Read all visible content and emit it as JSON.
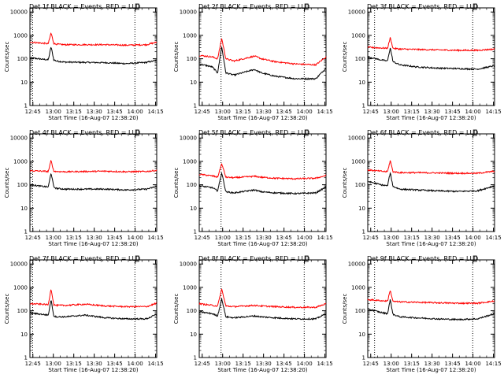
{
  "figure": {
    "ylabel": "Counts/sec",
    "xlabel": "Start Time (16-Aug-07 12:38:20)",
    "title_suffix": "BLACK = Events, RED = LLD",
    "yticks": [
      "1",
      "10",
      "100",
      "1000",
      "10000"
    ],
    "xticks": [
      "12:45",
      "13:00",
      "13:15",
      "13:30",
      "13:45",
      "14:00",
      "14:15"
    ],
    "colors": {
      "events": "#000000",
      "lld": "#ff0000"
    }
  },
  "chart_data": [
    {
      "type": "line",
      "title": "Det 1f BLACK = Events, RED = LLD",
      "det": "Det 1f",
      "ylim": [
        1,
        15000
      ],
      "xlim_min": [
        4.5,
        97.5
      ],
      "yscale": "log",
      "dotted_lines_min": [
        6.5,
        81.5
      ],
      "series": [
        {
          "name": "Events",
          "color": "#000000",
          "x": [
            4.5,
            14,
            18,
            20,
            22,
            24,
            30,
            45,
            60,
            75,
            90,
            97.5
          ],
          "y": [
            110,
            95,
            90,
            330,
            90,
            80,
            72,
            70,
            68,
            62,
            70,
            85
          ]
        },
        {
          "name": "LLD",
          "color": "#ff0000",
          "x": [
            4.5,
            14,
            18,
            20,
            22,
            24,
            30,
            45,
            60,
            75,
            90,
            97.5
          ],
          "y": [
            520,
            460,
            440,
            1300,
            450,
            420,
            400,
            400,
            400,
            380,
            400,
            510
          ]
        }
      ]
    },
    {
      "type": "line",
      "title": "Det 2f BLACK = Events, RED = LLD",
      "det": "Det 2f",
      "ylim": [
        1,
        15000
      ],
      "xlim_min": [
        4.5,
        97.5
      ],
      "yscale": "log",
      "dotted_lines_min": [
        20.5,
        81.5
      ],
      "series": [
        {
          "name": "Events",
          "color": "#000000",
          "x": [
            4.5,
            14,
            18,
            21,
            24,
            30,
            45,
            50,
            60,
            75,
            90,
            97.5
          ],
          "y": [
            60,
            45,
            25,
            330,
            25,
            20,
            35,
            25,
            18,
            14,
            14,
            40
          ]
        },
        {
          "name": "LLD",
          "color": "#ff0000",
          "x": [
            4.5,
            14,
            18,
            21,
            24,
            30,
            45,
            50,
            60,
            75,
            90,
            97.5
          ],
          "y": [
            140,
            120,
            100,
            750,
            100,
            80,
            130,
            100,
            75,
            60,
            55,
            120
          ]
        }
      ]
    },
    {
      "type": "line",
      "title": "Det 3f BLACK = Events, RED = LLD",
      "det": "Det 3f",
      "ylim": [
        1,
        15000
      ],
      "xlim_min": [
        4.5,
        97.5
      ],
      "yscale": "log",
      "dotted_lines_min": [
        9.5,
        81.5
      ],
      "series": [
        {
          "name": "Events",
          "color": "#000000",
          "x": [
            4.5,
            14,
            19,
            21,
            23,
            28,
            40,
            55,
            70,
            85,
            97.5
          ],
          "y": [
            120,
            90,
            80,
            300,
            75,
            55,
            45,
            40,
            38,
            36,
            50
          ]
        },
        {
          "name": "LLD",
          "color": "#ff0000",
          "x": [
            4.5,
            14,
            19,
            21,
            23,
            28,
            40,
            55,
            70,
            85,
            97.5
          ],
          "y": [
            310,
            290,
            280,
            800,
            280,
            260,
            250,
            240,
            230,
            230,
            260
          ]
        }
      ]
    },
    {
      "type": "line",
      "title": "Det 4f BLACK = Events, RED = LLD",
      "det": "Det 4f",
      "ylim": [
        1,
        15000
      ],
      "xlim_min": [
        4.5,
        97.5
      ],
      "yscale": "log",
      "dotted_lines_min": [
        6.5,
        81.5
      ],
      "series": [
        {
          "name": "Events",
          "color": "#000000",
          "x": [
            4.5,
            14,
            18,
            20,
            22,
            24,
            30,
            45,
            60,
            75,
            90,
            97.5
          ],
          "y": [
            100,
            85,
            80,
            330,
            80,
            70,
            65,
            65,
            65,
            60,
            65,
            85
          ]
        },
        {
          "name": "LLD",
          "color": "#ff0000",
          "x": [
            4.5,
            14,
            18,
            20,
            22,
            24,
            30,
            45,
            60,
            75,
            90,
            97.5
          ],
          "y": [
            400,
            380,
            370,
            1100,
            380,
            370,
            360,
            370,
            380,
            360,
            370,
            410
          ]
        }
      ]
    },
    {
      "type": "line",
      "title": "Det 5f BLACK = Events, RED = LLD",
      "det": "Det 5f",
      "ylim": [
        1,
        15000
      ],
      "xlim_min": [
        4.5,
        97.5
      ],
      "yscale": "log",
      "dotted_lines_min": [
        20.5,
        81.5
      ],
      "series": [
        {
          "name": "Events",
          "color": "#000000",
          "x": [
            4.5,
            14,
            18,
            21,
            24,
            30,
            45,
            50,
            60,
            75,
            90,
            97.5
          ],
          "y": [
            90,
            75,
            55,
            330,
            50,
            45,
            60,
            50,
            45,
            42,
            45,
            80
          ]
        },
        {
          "name": "LLD",
          "color": "#ff0000",
          "x": [
            4.5,
            14,
            18,
            21,
            24,
            30,
            45,
            50,
            60,
            75,
            90,
            97.5
          ],
          "y": [
            280,
            240,
            210,
            800,
            210,
            200,
            230,
            210,
            190,
            180,
            190,
            250
          ]
        }
      ]
    },
    {
      "type": "line",
      "title": "Det 6f BLACK = Events, RED = LLD",
      "det": "Det 6f",
      "ylim": [
        1,
        15000
      ],
      "xlim_min": [
        4.5,
        97.5
      ],
      "yscale": "log",
      "dotted_lines_min": [
        9.5,
        81.5
      ],
      "series": [
        {
          "name": "Events",
          "color": "#000000",
          "x": [
            4.5,
            14,
            19,
            21,
            23,
            28,
            40,
            55,
            70,
            85,
            97.5
          ],
          "y": [
            140,
            100,
            90,
            330,
            85,
            65,
            60,
            55,
            52,
            55,
            90
          ]
        },
        {
          "name": "LLD",
          "color": "#ff0000",
          "x": [
            4.5,
            14,
            19,
            21,
            23,
            28,
            40,
            55,
            70,
            85,
            97.5
          ],
          "y": [
            430,
            380,
            360,
            1100,
            360,
            330,
            330,
            320,
            310,
            310,
            380
          ]
        }
      ]
    },
    {
      "type": "line",
      "title": "Det 7f BLACK = Events, RED = LLD",
      "det": "Det 7f",
      "ylim": [
        1,
        15000
      ],
      "xlim_min": [
        4.5,
        97.5
      ],
      "yscale": "log",
      "dotted_lines_min": [
        6.5,
        81.5
      ],
      "series": [
        {
          "name": "Events",
          "color": "#000000",
          "x": [
            4.5,
            14,
            18,
            20,
            22,
            24,
            30,
            45,
            60,
            75,
            90,
            97.5
          ],
          "y": [
            80,
            70,
            65,
            300,
            60,
            55,
            55,
            65,
            50,
            45,
            45,
            70
          ]
        },
        {
          "name": "LLD",
          "color": "#ff0000",
          "x": [
            4.5,
            14,
            18,
            20,
            22,
            24,
            30,
            45,
            60,
            75,
            90,
            97.5
          ],
          "y": [
            200,
            190,
            180,
            900,
            180,
            170,
            170,
            190,
            160,
            150,
            150,
            210
          ]
        }
      ]
    },
    {
      "type": "line",
      "title": "Det 8f BLACK = Events, RED = LLD",
      "det": "Det 8f",
      "ylim": [
        1,
        15000
      ],
      "xlim_min": [
        4.5,
        97.5
      ],
      "yscale": "log",
      "dotted_lines_min": [
        20.5,
        81.5
      ],
      "series": [
        {
          "name": "Events",
          "color": "#000000",
          "x": [
            4.5,
            14,
            18,
            21,
            24,
            30,
            45,
            50,
            60,
            75,
            90,
            97.5
          ],
          "y": [
            90,
            75,
            60,
            330,
            55,
            50,
            60,
            55,
            50,
            45,
            45,
            75
          ]
        },
        {
          "name": "LLD",
          "color": "#ff0000",
          "x": [
            4.5,
            14,
            18,
            21,
            24,
            30,
            45,
            50,
            60,
            75,
            90,
            97.5
          ],
          "y": [
            200,
            170,
            160,
            850,
            160,
            150,
            170,
            160,
            150,
            140,
            140,
            200
          ]
        }
      ]
    },
    {
      "type": "line",
      "title": "Det 9f BLACK = Events, RED = LLD",
      "det": "Det 9f",
      "ylim": [
        1,
        15000
      ],
      "xlim_min": [
        4.5,
        97.5
      ],
      "yscale": "log",
      "dotted_lines_min": [
        9.5,
        81.5
      ],
      "series": [
        {
          "name": "Events",
          "color": "#000000",
          "x": [
            4.5,
            14,
            19,
            21,
            23,
            28,
            40,
            55,
            70,
            85,
            97.5
          ],
          "y": [
            120,
            85,
            75,
            300,
            70,
            55,
            50,
            45,
            42,
            45,
            75
          ]
        },
        {
          "name": "LLD",
          "color": "#ff0000",
          "x": [
            4.5,
            14,
            19,
            21,
            23,
            28,
            40,
            55,
            70,
            85,
            97.5
          ],
          "y": [
            300,
            270,
            260,
            750,
            250,
            240,
            230,
            220,
            210,
            210,
            260
          ]
        }
      ]
    }
  ]
}
